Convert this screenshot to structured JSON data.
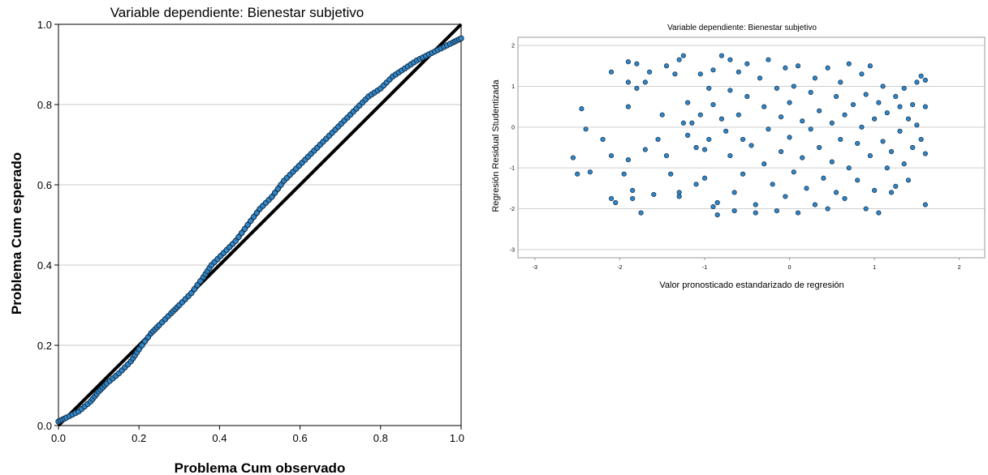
{
  "chart_data": [
    {
      "type": "line",
      "title": "Variable dependiente: Bienestar subjetivo",
      "xlabel": "Problema Cum observado",
      "ylabel": "Problema Cum esperado",
      "xlim": [
        0,
        1
      ],
      "ylim": [
        0,
        1
      ],
      "xticks": [
        "0.0",
        "0.2",
        "0.4",
        "0.6",
        "0.8",
        "1.0"
      ],
      "yticks": [
        "0.0",
        "0.2",
        "0.4",
        "0.6",
        "0.8",
        "1.0"
      ],
      "grid": "horizontal",
      "reference_line": [
        [
          0,
          0
        ],
        [
          1,
          1
        ]
      ],
      "series": [
        {
          "points": [
            [
              0.0,
              0.01
            ],
            [
              0.02,
              0.02
            ],
            [
              0.05,
              0.035
            ],
            [
              0.08,
              0.06
            ],
            [
              0.1,
              0.085
            ],
            [
              0.12,
              0.105
            ],
            [
              0.15,
              0.13
            ],
            [
              0.18,
              0.16
            ],
            [
              0.2,
              0.19
            ],
            [
              0.23,
              0.23
            ],
            [
              0.25,
              0.25
            ],
            [
              0.28,
              0.28
            ],
            [
              0.3,
              0.3
            ],
            [
              0.33,
              0.33
            ],
            [
              0.36,
              0.37
            ],
            [
              0.38,
              0.4
            ],
            [
              0.41,
              0.43
            ],
            [
              0.44,
              0.46
            ],
            [
              0.47,
              0.5
            ],
            [
              0.5,
              0.54
            ],
            [
              0.53,
              0.57
            ],
            [
              0.56,
              0.61
            ],
            [
              0.59,
              0.64
            ],
            [
              0.62,
              0.67
            ],
            [
              0.65,
              0.7
            ],
            [
              0.68,
              0.73
            ],
            [
              0.71,
              0.76
            ],
            [
              0.74,
              0.79
            ],
            [
              0.77,
              0.82
            ],
            [
              0.8,
              0.84
            ],
            [
              0.83,
              0.87
            ],
            [
              0.86,
              0.89
            ],
            [
              0.89,
              0.91
            ],
            [
              0.92,
              0.925
            ],
            [
              0.95,
              0.94
            ],
            [
              0.98,
              0.955
            ],
            [
              1.0,
              0.965
            ]
          ]
        }
      ]
    },
    {
      "type": "scatter",
      "title": "Variable dependiente: Bienestar subjetivo",
      "xlabel": "Valor pronosticado estandarizado de regresión",
      "ylabel": "Regresión Residual Studentizada",
      "xlim": [
        -3.2,
        2.3
      ],
      "ylim": [
        -3.2,
        2.2
      ],
      "xticks": [
        "-3",
        "-2",
        "-1",
        "0",
        "1",
        "2"
      ],
      "yticks": [
        "-3",
        "-2",
        "-1",
        "0",
        "1",
        "2"
      ],
      "grid": "horizontal",
      "series": [
        {
          "points": [
            [
              -2.55,
              -0.75
            ],
            [
              -2.5,
              -1.15
            ],
            [
              -2.45,
              0.45
            ],
            [
              -2.4,
              -0.05
            ],
            [
              -2.35,
              -1.1
            ],
            [
              -2.2,
              -0.3
            ],
            [
              -2.1,
              1.35
            ],
            [
              -2.1,
              -1.75
            ],
            [
              -2.05,
              -1.85
            ],
            [
              -2.1,
              -0.7
            ],
            [
              -1.95,
              -1.15
            ],
            [
              -1.9,
              1.1
            ],
            [
              -1.9,
              0.5
            ],
            [
              -1.9,
              1.6
            ],
            [
              -1.9,
              -0.8
            ],
            [
              -1.85,
              -1.55
            ],
            [
              -1.85,
              -1.75
            ],
            [
              -1.8,
              1.55
            ],
            [
              -1.8,
              0.95
            ],
            [
              -1.75,
              -2.1
            ],
            [
              -1.7,
              1.1
            ],
            [
              -1.7,
              -0.55
            ],
            [
              -1.65,
              1.35
            ],
            [
              -1.6,
              -1.65
            ],
            [
              -1.55,
              -0.3
            ],
            [
              -1.5,
              0.3
            ],
            [
              -1.45,
              1.5
            ],
            [
              -1.45,
              -0.7
            ],
            [
              -1.4,
              -1.15
            ],
            [
              -1.35,
              1.3
            ],
            [
              -1.3,
              1.65
            ],
            [
              -1.3,
              -1.7
            ],
            [
              -1.3,
              -1.6
            ],
            [
              -1.25,
              1.75
            ],
            [
              -1.25,
              0.1
            ],
            [
              -1.2,
              0.6
            ],
            [
              -1.2,
              -0.2
            ],
            [
              -1.15,
              0.1
            ],
            [
              -1.1,
              -0.5
            ],
            [
              -1.1,
              -1.4
            ],
            [
              -1.05,
              1.3
            ],
            [
              -1.05,
              0.3
            ],
            [
              -1.0,
              -0.55
            ],
            [
              -1.0,
              -1.25
            ],
            [
              -0.95,
              0.95
            ],
            [
              -0.95,
              -0.3
            ],
            [
              -0.9,
              1.4
            ],
            [
              -0.9,
              0.55
            ],
            [
              -0.9,
              -1.95
            ],
            [
              -0.85,
              -2.15
            ],
            [
              -0.85,
              -1.85
            ],
            [
              -0.8,
              1.75
            ],
            [
              -0.8,
              0.2
            ],
            [
              -0.75,
              -0.1
            ],
            [
              -0.7,
              1.65
            ],
            [
              -0.7,
              0.9
            ],
            [
              -0.7,
              -0.7
            ],
            [
              -0.65,
              -1.6
            ],
            [
              -0.65,
              -2.05
            ],
            [
              -0.6,
              1.35
            ],
            [
              -0.6,
              0.3
            ],
            [
              -0.55,
              -0.3
            ],
            [
              -0.55,
              -1.15
            ],
            [
              -0.5,
              1.55
            ],
            [
              -0.5,
              0.75
            ],
            [
              -0.45,
              -0.45
            ],
            [
              -0.4,
              -1.9
            ],
            [
              -0.4,
              -2.1
            ],
            [
              -0.35,
              1.2
            ],
            [
              -0.3,
              0.5
            ],
            [
              -0.3,
              -0.9
            ],
            [
              -0.25,
              1.65
            ],
            [
              -0.25,
              -0.05
            ],
            [
              -0.2,
              -1.4
            ],
            [
              -0.15,
              0.95
            ],
            [
              -0.15,
              -2.05
            ],
            [
              -0.1,
              0.25
            ],
            [
              -0.1,
              -0.6
            ],
            [
              -0.05,
              1.45
            ],
            [
              -0.05,
              -1.7
            ],
            [
              0.0,
              0.6
            ],
            [
              0.0,
              -0.25
            ],
            [
              0.05,
              1.0
            ],
            [
              0.05,
              -1.1
            ],
            [
              0.1,
              -2.1
            ],
            [
              0.1,
              1.5
            ],
            [
              0.15,
              0.15
            ],
            [
              0.15,
              -0.75
            ],
            [
              0.2,
              -1.5
            ],
            [
              0.25,
              0.85
            ],
            [
              0.25,
              -0.05
            ],
            [
              0.3,
              -1.9
            ],
            [
              0.3,
              1.2
            ],
            [
              0.35,
              0.4
            ],
            [
              0.35,
              -0.5
            ],
            [
              0.4,
              -1.25
            ],
            [
              0.45,
              1.45
            ],
            [
              0.45,
              -2.0
            ],
            [
              0.5,
              0.1
            ],
            [
              0.5,
              -0.85
            ],
            [
              0.55,
              0.75
            ],
            [
              0.55,
              -1.6
            ],
            [
              0.6,
              1.1
            ],
            [
              0.6,
              -0.3
            ],
            [
              0.65,
              0.3
            ],
            [
              0.65,
              -1.75
            ],
            [
              0.7,
              -1.0
            ],
            [
              0.7,
              1.55
            ],
            [
              0.75,
              0.55
            ],
            [
              0.8,
              -0.4
            ],
            [
              0.8,
              -1.3
            ],
            [
              0.85,
              1.3
            ],
            [
              0.85,
              0.0
            ],
            [
              0.9,
              -2.0
            ],
            [
              0.9,
              0.8
            ],
            [
              0.95,
              -0.7
            ],
            [
              0.95,
              1.5
            ],
            [
              1.0,
              0.2
            ],
            [
              1.0,
              -1.55
            ],
            [
              1.05,
              -2.1
            ],
            [
              1.05,
              0.6
            ],
            [
              1.1,
              -0.35
            ],
            [
              1.1,
              1.0
            ],
            [
              1.15,
              -1.0
            ],
            [
              1.15,
              0.35
            ],
            [
              1.2,
              -1.6
            ],
            [
              1.2,
              -0.6
            ],
            [
              1.25,
              0.75
            ],
            [
              1.25,
              -1.45
            ],
            [
              1.3,
              -0.1
            ],
            [
              1.3,
              0.5
            ],
            [
              1.35,
              -0.9
            ],
            [
              1.35,
              0.95
            ],
            [
              1.4,
              0.2
            ],
            [
              1.4,
              -1.3
            ],
            [
              1.45,
              0.55
            ],
            [
              1.45,
              -0.5
            ],
            [
              1.5,
              1.1
            ],
            [
              1.5,
              0.05
            ],
            [
              1.55,
              1.25
            ],
            [
              1.55,
              -0.3
            ],
            [
              1.6,
              0.5
            ],
            [
              1.6,
              -0.65
            ],
            [
              1.6,
              -1.9
            ],
            [
              1.6,
              1.15
            ]
          ]
        }
      ]
    }
  ]
}
